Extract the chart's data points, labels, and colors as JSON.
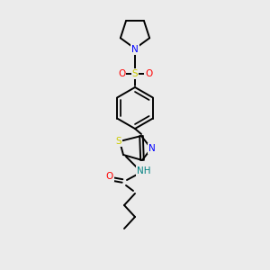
{
  "background_color": "#ebebeb",
  "atom_colors": {
    "N": "#0000ff",
    "O": "#ff0000",
    "S": "#cccc00",
    "NH": "#008080",
    "C": "#000000"
  },
  "lw": 1.4,
  "fontsize": 7.5
}
